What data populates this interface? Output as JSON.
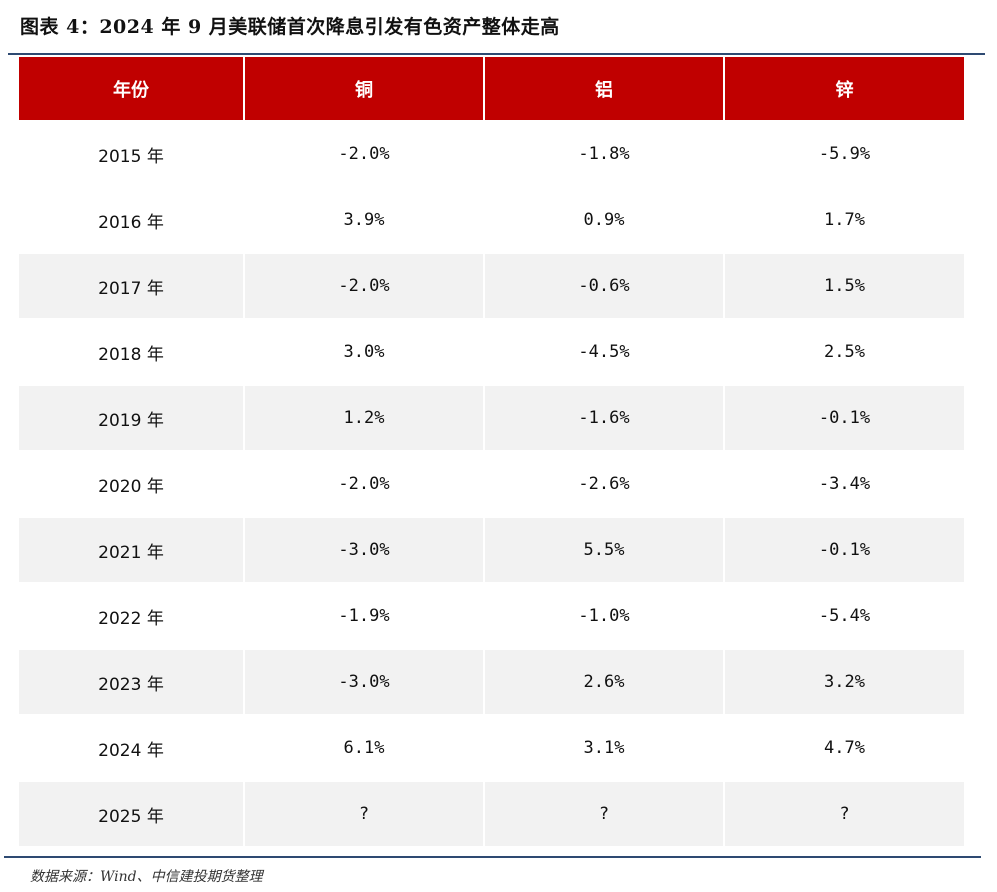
{
  "title": "图表 4：2024 年 9 月美联储首次降息引发有色资产整体走高",
  "table": {
    "headers": [
      "年份",
      "铜",
      "铝",
      "锌"
    ],
    "rows": [
      {
        "year": "2015 年",
        "copper": "-2.0%",
        "aluminum": "-1.8%",
        "zinc": "-5.9%",
        "shaded": false
      },
      {
        "year": "2016 年",
        "copper": "3.9%",
        "aluminum": "0.9%",
        "zinc": "1.7%",
        "shaded": false
      },
      {
        "year": "2017 年",
        "copper": "-2.0%",
        "aluminum": "-0.6%",
        "zinc": "1.5%",
        "shaded": true
      },
      {
        "year": "2018 年",
        "copper": "3.0%",
        "aluminum": "-4.5%",
        "zinc": "2.5%",
        "shaded": false
      },
      {
        "year": "2019 年",
        "copper": "1.2%",
        "aluminum": "-1.6%",
        "zinc": "-0.1%",
        "shaded": true
      },
      {
        "year": "2020 年",
        "copper": "-2.0%",
        "aluminum": "-2.6%",
        "zinc": "-3.4%",
        "shaded": false
      },
      {
        "year": "2021 年",
        "copper": "-3.0%",
        "aluminum": "5.5%",
        "zinc": "-0.1%",
        "shaded": true
      },
      {
        "year": "2022 年",
        "copper": "-1.9%",
        "aluminum": "-1.0%",
        "zinc": "-5.4%",
        "shaded": false
      },
      {
        "year": "2023 年",
        "copper": "-3.0%",
        "aluminum": "2.6%",
        "zinc": "3.2%",
        "shaded": true
      },
      {
        "year": "2024 年",
        "copper": "6.1%",
        "aluminum": "3.1%",
        "zinc": "4.7%",
        "shaded": false
      },
      {
        "year": "2025 年",
        "copper": "?",
        "aluminum": "?",
        "zinc": "?",
        "shaded": true
      }
    ]
  },
  "source": "数据来源：Wind、中信建投期货整理",
  "colors": {
    "header_bg": "#c00000",
    "header_text": "#ffffff",
    "shaded_row": "#f2f2f2",
    "rule": "#2e4a72"
  }
}
